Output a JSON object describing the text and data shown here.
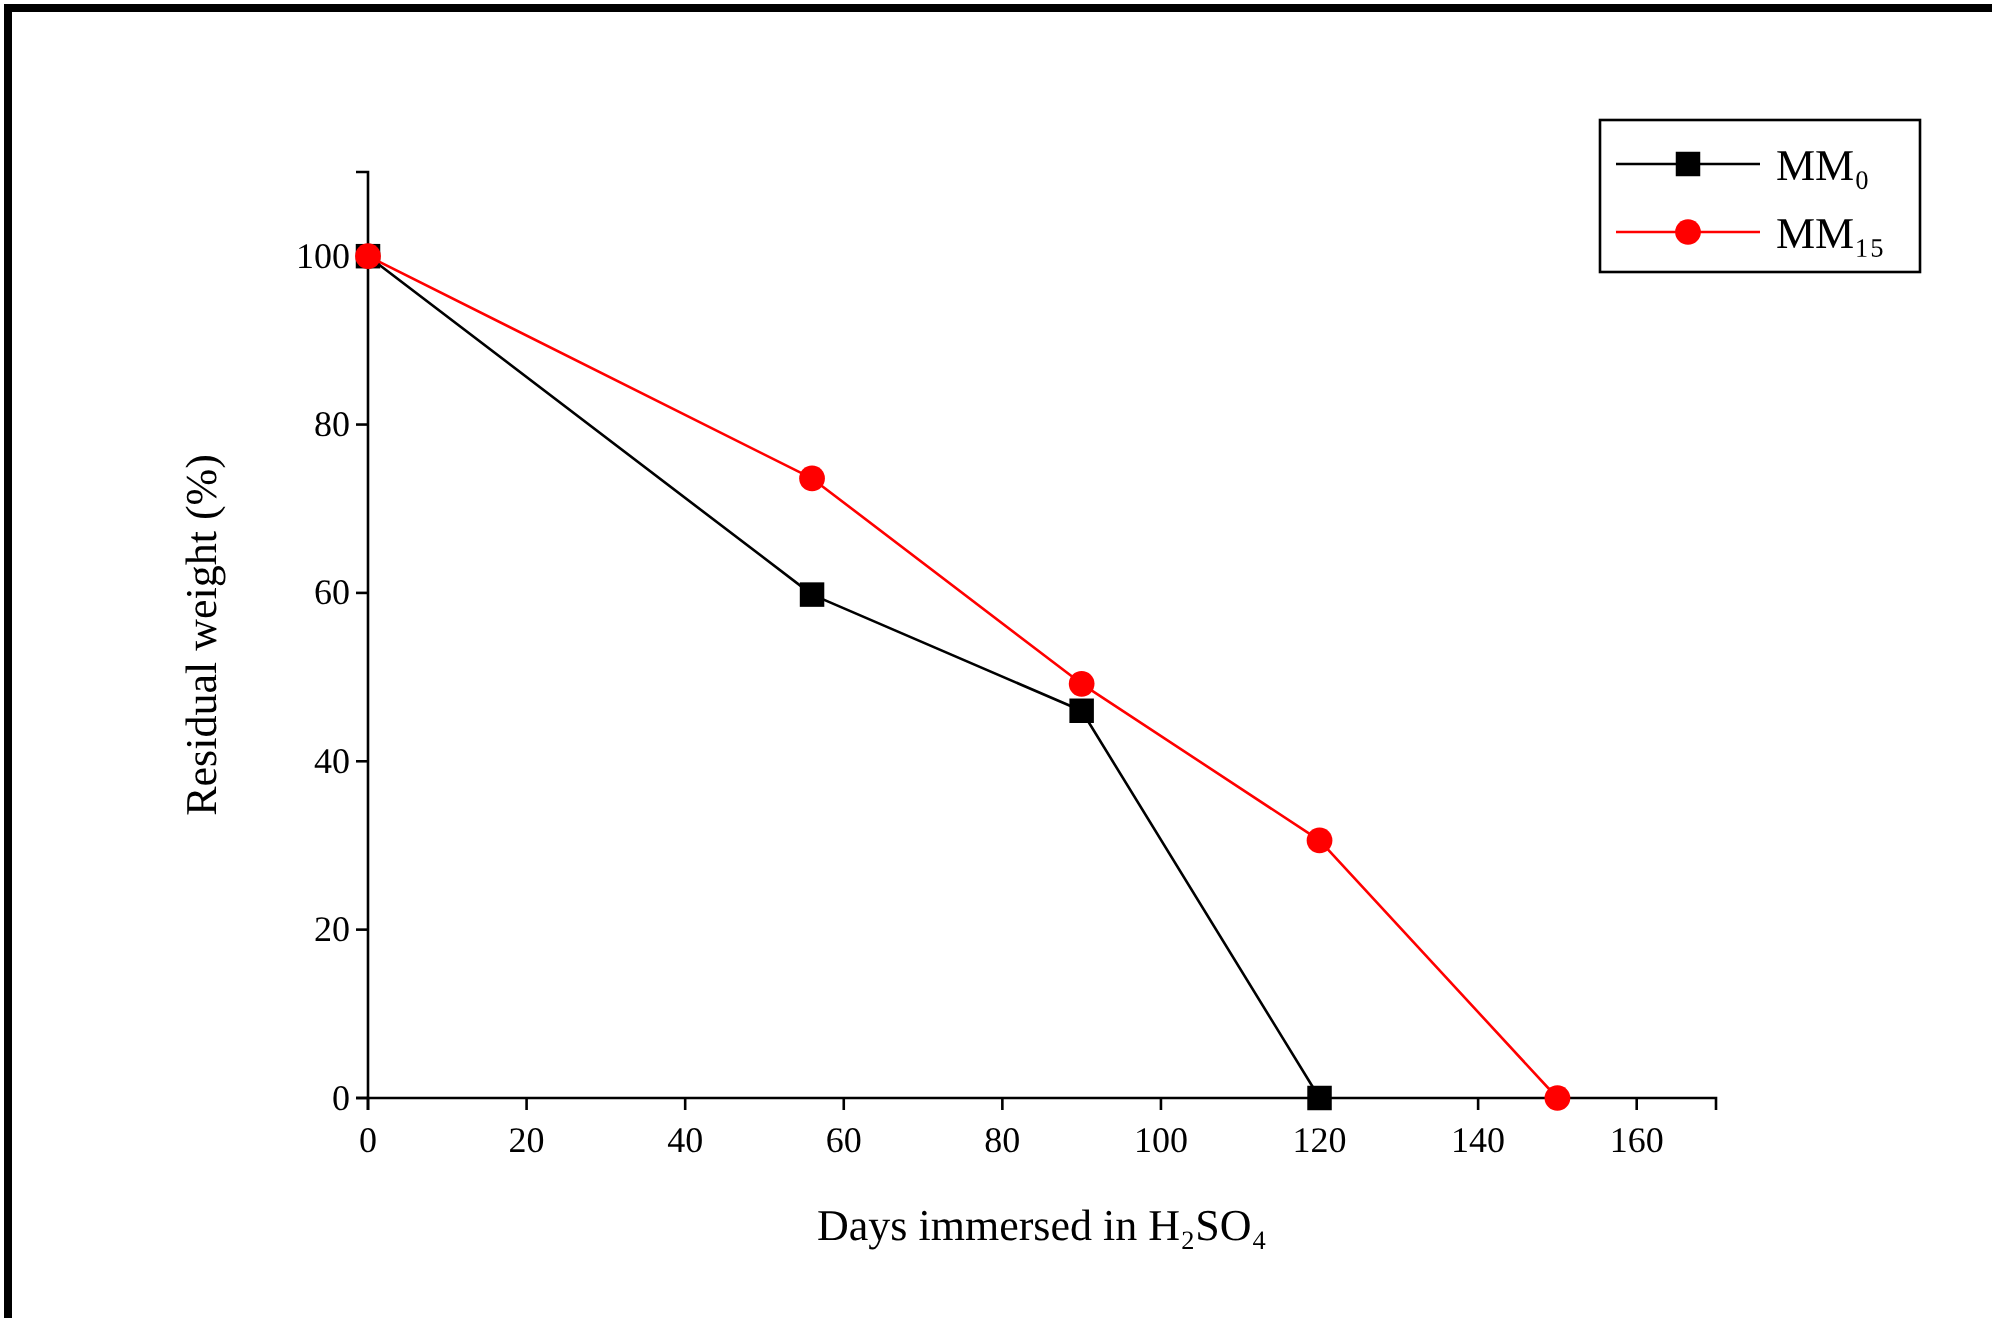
{
  "chart_data": {
    "type": "line",
    "xlabel": "Days immersed in H₂SO₄",
    "ylabel": "Residual weight (%)",
    "xlim": [
      0,
      170
    ],
    "xticks": [
      0,
      20,
      40,
      60,
      80,
      100,
      120,
      140,
      160
    ],
    "ylim": [
      0,
      110
    ],
    "yticks": [
      0,
      20,
      40,
      60,
      80,
      100
    ],
    "grid": false,
    "legend": "top right",
    "line_style": "solid",
    "series": [
      {
        "name": "MM₀",
        "color": "#000000",
        "marker": "square",
        "x": [
          0,
          56,
          90,
          120
        ],
        "values": [
          100,
          59.8,
          46,
          0
        ]
      },
      {
        "name": "MM₁₅",
        "color": "#ff0000",
        "marker": "circle",
        "x": [
          0,
          56,
          90,
          120,
          150
        ],
        "values": [
          100,
          73.6,
          49.2,
          30.6,
          0
        ]
      }
    ]
  }
}
